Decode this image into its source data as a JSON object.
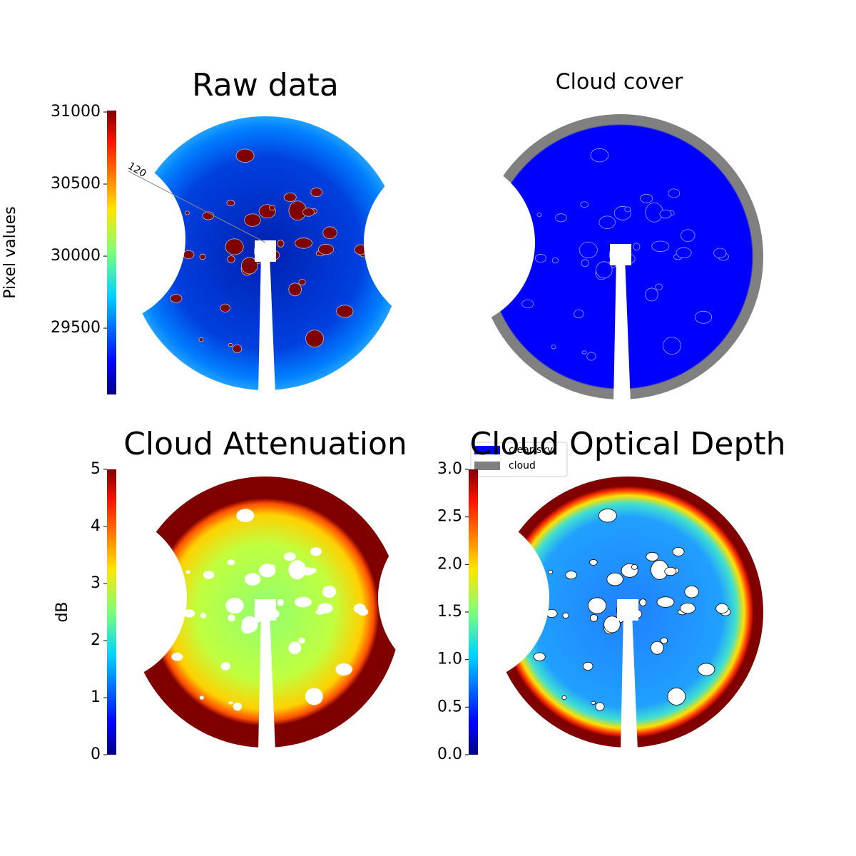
{
  "chart_data": [
    {
      "type": "image",
      "title": "Raw data",
      "ylabel": "Pixel values",
      "colormap": "jet",
      "ylim": [
        29040,
        31010
      ],
      "yticks": [
        29500,
        30000,
        30500,
        31000
      ],
      "annotations": [
        "120"
      ]
    },
    {
      "type": "image",
      "title": "Cloud cover",
      "series": [
        {
          "name": "clear sky",
          "color": "#0000ff"
        },
        {
          "name": "cloud",
          "color": "#808080"
        }
      ]
    },
    {
      "type": "image",
      "title": "Cloud Attenuation",
      "ylabel": "dB",
      "colormap": "jet",
      "ylim": [
        0,
        5
      ],
      "yticks": [
        0,
        1,
        2,
        3,
        4,
        5
      ]
    },
    {
      "type": "image",
      "title": "Cloud Optical Depth",
      "colormap": "jet",
      "ylim": [
        0,
        3
      ],
      "yticks": [
        {
          "value": 0,
          "label": "0.0"
        },
        {
          "value": 0.5,
          "label": "0.5"
        },
        {
          "value": 1,
          "label": "1.0"
        },
        {
          "value": 1.5,
          "label": "1.5"
        },
        {
          "value": 2,
          "label": "2.0"
        },
        {
          "value": 2.5,
          "label": "2.5"
        },
        {
          "value": 3,
          "label": "3.0"
        }
      ]
    }
  ]
}
